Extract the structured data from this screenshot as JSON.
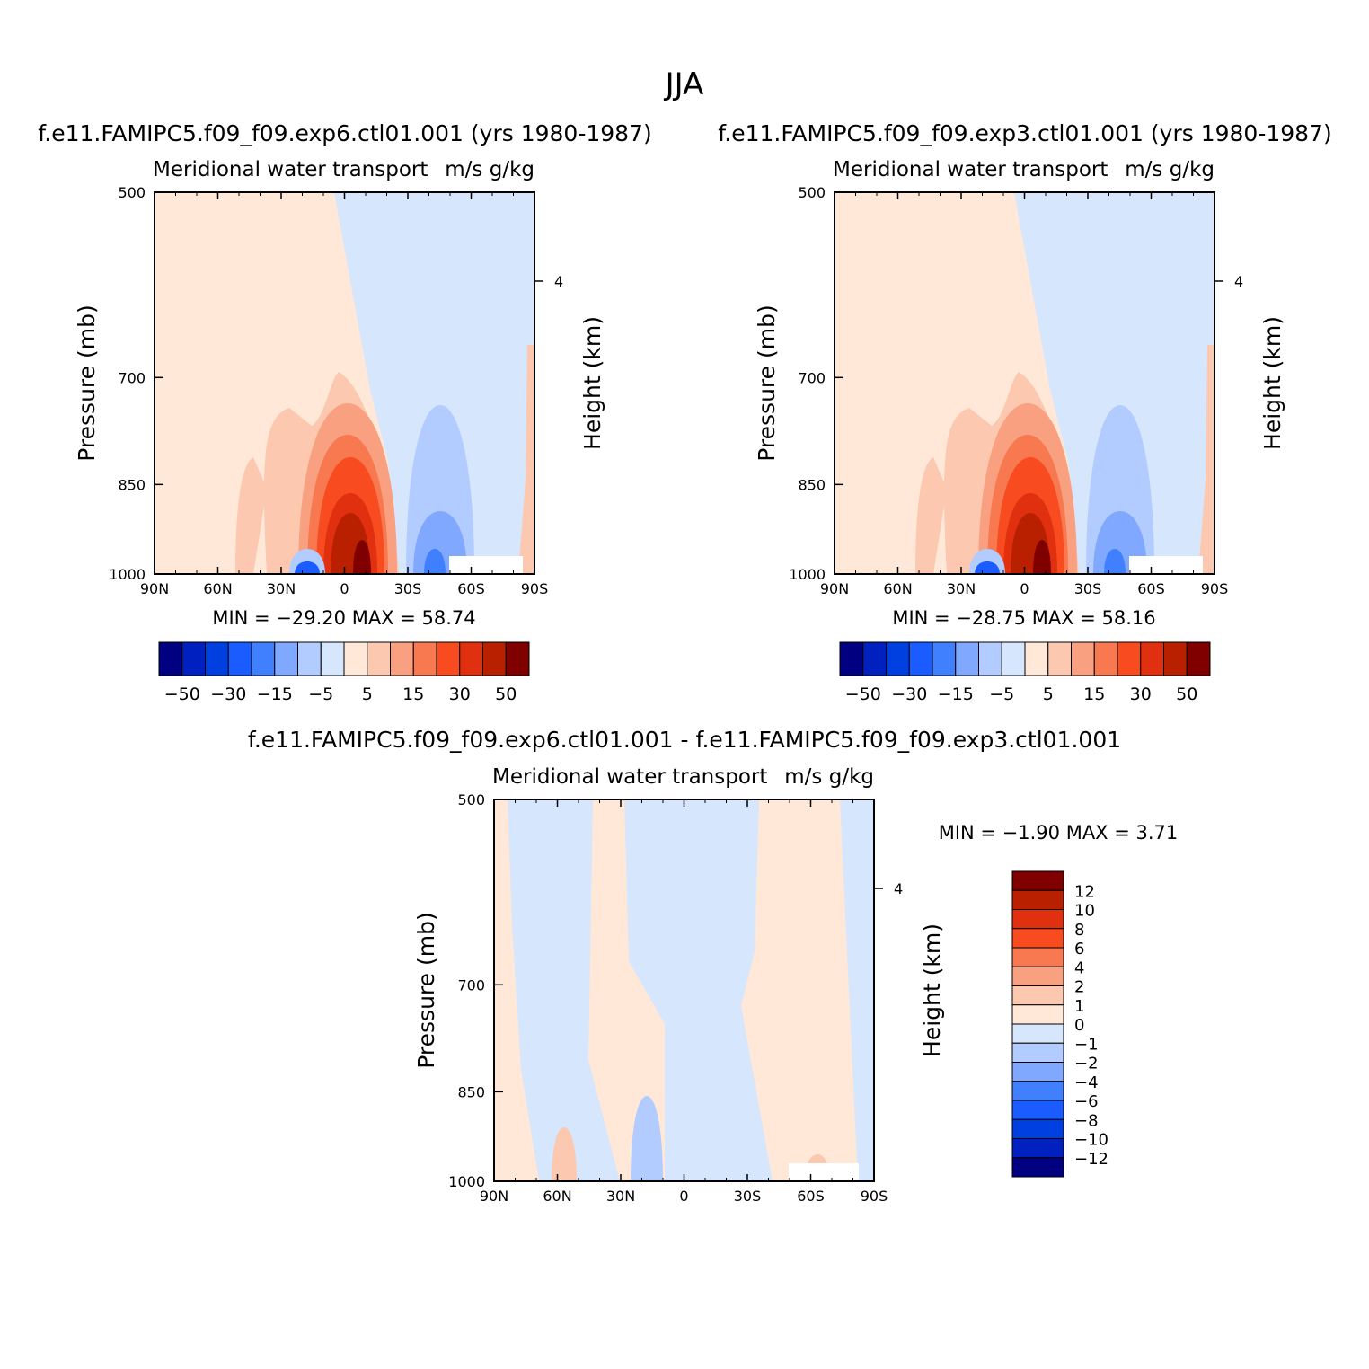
{
  "figure_title": "JJA",
  "colors": {
    "main_palette": [
      "#000080",
      "#0020c0",
      "#0040e0",
      "#1a5cff",
      "#4080ff",
      "#80a8ff",
      "#b3ccff",
      "#d6e6fc",
      "#ffe8d8",
      "#fcc8b0",
      "#f8a080",
      "#f87850",
      "#f84c20",
      "#e03010",
      "#b82000",
      "#800000"
    ],
    "diff_palette": [
      "#000080",
      "#0020c0",
      "#0040e0",
      "#1a5cff",
      "#4080ff",
      "#80a8ff",
      "#b3ccff",
      "#d6e6fc",
      "#ffe8d8",
      "#fcc8b0",
      "#f8a080",
      "#f87850",
      "#f84c20",
      "#e03010",
      "#b82000",
      "#800000"
    ]
  },
  "panels": [
    {
      "title": "f.e11.FAMIPC5.f09_f09.exp6.ctl01.001 (yrs 1980-1987)",
      "left_label": "Meridional water transport",
      "right_label": "m/s g/kg",
      "ylabel": "Pressure (mb)",
      "ylabel_right": "Height (km)",
      "min_max": "MIN = -29.20   MAX =  58.74",
      "colorbar_labels": [
        "-50",
        "-30",
        "-15",
        "-5",
        "5",
        "15",
        "30",
        "50"
      ]
    },
    {
      "title": "f.e11.FAMIPC5.f09_f09.exp3.ctl01.001 (yrs 1980-1987)",
      "left_label": "Meridional water transport",
      "right_label": "m/s g/kg",
      "ylabel": "Pressure (mb)",
      "ylabel_right": "Height (km)",
      "min_max": "MIN = -28.75   MAX =  58.16",
      "colorbar_labels": [
        "-50",
        "-30",
        "-15",
        "-5",
        "5",
        "15",
        "30",
        "50"
      ]
    },
    {
      "title": "f.e11.FAMIPC5.f09_f09.exp6.ctl01.001 - f.e11.FAMIPC5.f09_f09.exp3.ctl01.001",
      "left_label": "Meridional water transport",
      "right_label": "m/s g/kg",
      "ylabel": "Pressure (mb)",
      "ylabel_right": "Height (km)",
      "min_max": "MIN =   -1.90   MAX =    3.71",
      "colorbar_labels": [
        "12",
        "10",
        "8",
        "6",
        "4",
        "2",
        "1",
        "0",
        "-1",
        "-2",
        "-4",
        "-6",
        "-8",
        "-10",
        "-12"
      ]
    }
  ],
  "chart_data": [
    {
      "type": "heatmap",
      "title": "f.e11.FAMIPC5.f09_f09.exp6.ctl01.001 (yrs 1980-1987)",
      "xlabel": "",
      "ylabel": "Pressure (mb)",
      "ylabel_right": "Height (km)",
      "x_ticks": [
        "90N",
        "60N",
        "30N",
        "0",
        "30S",
        "60S",
        "90S"
      ],
      "y_ticks": [
        500,
        700,
        850,
        1000
      ],
      "y_right_ticks": [
        4
      ],
      "y_scale": "log",
      "ylim": [
        1000,
        500
      ],
      "xlim": [
        90,
        -90
      ],
      "min": -29.2,
      "max": 58.74,
      "levels": [
        -50,
        -40,
        -30,
        -20,
        -15,
        -10,
        -5,
        0,
        5,
        10,
        15,
        20,
        30,
        40,
        50
      ],
      "colorbar_labels": [
        "-50",
        "-30",
        "-15",
        "-5",
        "5",
        "15",
        "30",
        "50"
      ]
    },
    {
      "type": "heatmap",
      "title": "f.e11.FAMIPC5.f09_f09.exp3.ctl01.001 (yrs 1980-1987)",
      "xlabel": "",
      "ylabel": "Pressure (mb)",
      "ylabel_right": "Height (km)",
      "x_ticks": [
        "90N",
        "60N",
        "30N",
        "0",
        "30S",
        "60S",
        "90S"
      ],
      "y_ticks": [
        500,
        700,
        850,
        1000
      ],
      "y_right_ticks": [
        4
      ],
      "y_scale": "log",
      "ylim": [
        1000,
        500
      ],
      "xlim": [
        90,
        -90
      ],
      "min": -28.75,
      "max": 58.16,
      "levels": [
        -50,
        -40,
        -30,
        -20,
        -15,
        -10,
        -5,
        0,
        5,
        10,
        15,
        20,
        30,
        40,
        50
      ],
      "colorbar_labels": [
        "-50",
        "-30",
        "-15",
        "-5",
        "5",
        "15",
        "30",
        "50"
      ]
    },
    {
      "type": "heatmap",
      "title": "f.e11.FAMIPC5.f09_f09.exp6.ctl01.001 - f.e11.FAMIPC5.f09_f09.exp3.ctl01.001",
      "xlabel": "",
      "ylabel": "Pressure (mb)",
      "ylabel_right": "Height (km)",
      "x_ticks": [
        "90N",
        "60N",
        "30N",
        "0",
        "30S",
        "60S",
        "90S"
      ],
      "y_ticks": [
        500,
        700,
        850,
        1000
      ],
      "y_right_ticks": [
        4
      ],
      "y_scale": "log",
      "ylim": [
        1000,
        500
      ],
      "xlim": [
        90,
        -90
      ],
      "min": -1.9,
      "max": 3.71,
      "levels": [
        -12,
        -10,
        -8,
        -6,
        -4,
        -2,
        -1,
        0,
        1,
        2,
        4,
        6,
        8,
        10,
        12
      ],
      "colorbar_labels": [
        "12",
        "10",
        "8",
        "6",
        "4",
        "2",
        "1",
        "0",
        "-1",
        "-2",
        "-4",
        "-6",
        "-8",
        "-10",
        "-12"
      ]
    }
  ]
}
